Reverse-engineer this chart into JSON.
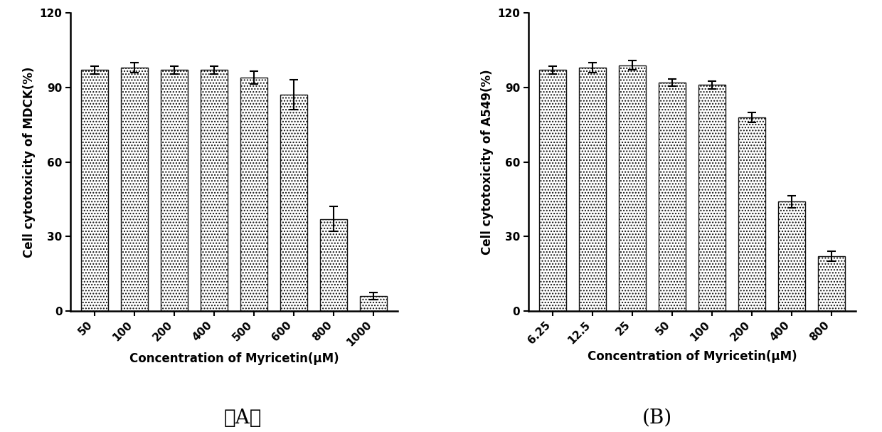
{
  "chart_A": {
    "categories": [
      "50",
      "100",
      "200",
      "400",
      "500",
      "600",
      "800",
      "1000"
    ],
    "values": [
      97,
      98,
      97,
      97,
      94,
      87,
      37,
      6
    ],
    "errors": [
      1.5,
      2.0,
      1.5,
      1.5,
      2.5,
      6.0,
      5.0,
      1.5
    ],
    "ylabel": "Cell cytotoxicity of MDCK(%)",
    "xlabel": "Concentration of Myricetin(μM)",
    "ylim": [
      0,
      120
    ],
    "yticks": [
      0,
      30,
      60,
      90,
      120
    ],
    "label": "（A）"
  },
  "chart_B": {
    "categories": [
      "6.25",
      "12.5",
      "25",
      "50",
      "100",
      "200",
      "400",
      "800"
    ],
    "values": [
      97,
      98,
      99,
      92,
      91,
      78,
      44,
      22
    ],
    "errors": [
      1.5,
      2.0,
      2.0,
      1.5,
      1.5,
      2.0,
      2.5,
      2.0
    ],
    "ylabel": "Cell cytotoxicity of A549(%)",
    "xlabel": "Concentration of Myricetin(μM)",
    "ylim": [
      0,
      120
    ],
    "yticks": [
      0,
      30,
      60,
      90,
      120
    ],
    "label": "(B)"
  },
  "bar_edgecolor": "#111111",
  "background_color": "#ffffff",
  "figure_label_fontsize": 20,
  "axis_label_fontsize": 12,
  "tick_fontsize": 11,
  "bar_width": 0.68
}
